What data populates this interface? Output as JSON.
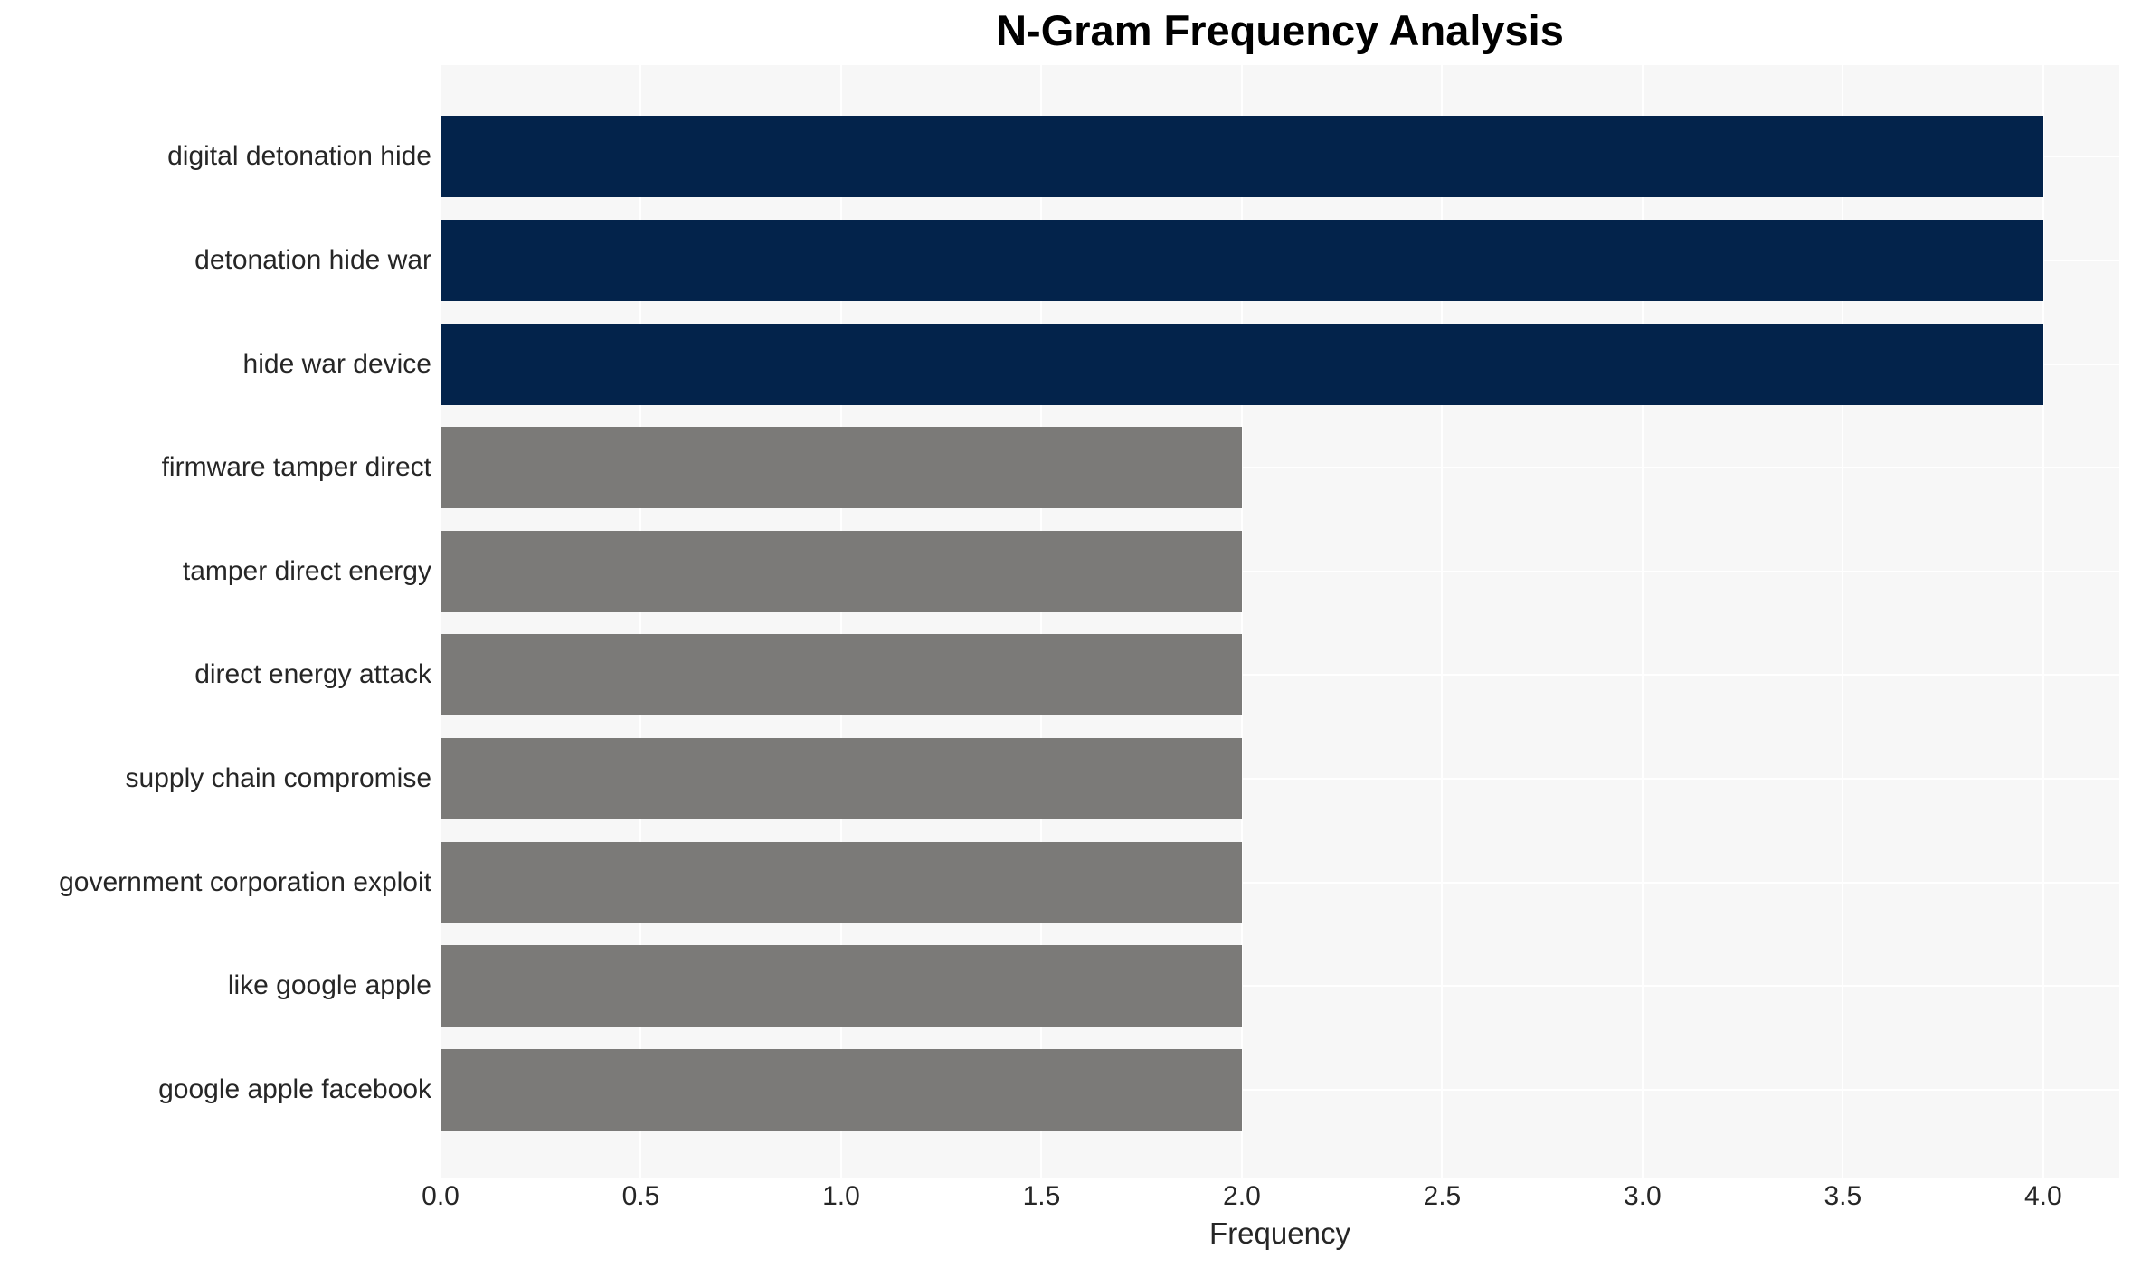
{
  "chart_data": {
    "type": "bar",
    "orientation": "horizontal",
    "title": "N-Gram Frequency Analysis",
    "xlabel": "Frequency",
    "ylabel": "",
    "categories": [
      "digital detonation hide",
      "detonation hide war",
      "hide war device",
      "firmware tamper direct",
      "tamper direct energy",
      "direct energy attack",
      "supply chain compromise",
      "government corporation exploit",
      "like google apple",
      "google apple facebook"
    ],
    "values": [
      4,
      4,
      4,
      2,
      2,
      2,
      2,
      2,
      2,
      2
    ],
    "bar_colors": [
      "#03234b",
      "#03234b",
      "#03234b",
      "#7b7a78",
      "#7b7a78",
      "#7b7a78",
      "#7b7a78",
      "#7b7a78",
      "#7b7a78",
      "#7b7a78"
    ],
    "xlim": [
      0,
      4.19
    ],
    "xticks": [
      0,
      0.5,
      1,
      1.5,
      2,
      2.5,
      3,
      3.5,
      4
    ],
    "xtick_labels": [
      "0.0",
      "0.5",
      "1.0",
      "1.5",
      "2.0",
      "2.5",
      "3.0",
      "3.5",
      "4.0"
    ],
    "grid": true,
    "legend": false,
    "colors": {
      "plot_bg": "#f7f7f7",
      "grid": "#ffffff",
      "tick_text": "#262626",
      "title_text": "#000000"
    }
  }
}
